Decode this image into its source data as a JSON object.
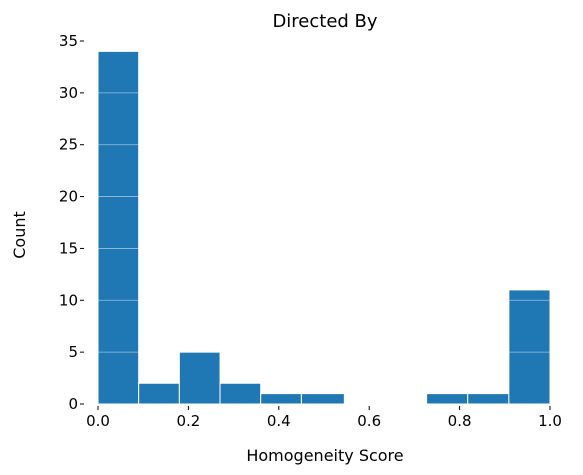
{
  "chart_data": {
    "type": "bar",
    "title": "Directed By",
    "xlabel": "Homogeneity Score",
    "ylabel": "Count",
    "bin_edges": [
      0.0,
      0.09,
      0.18,
      0.27,
      0.36,
      0.45,
      0.545,
      0.636,
      0.727,
      0.818,
      0.909,
      1.0
    ],
    "values": [
      34,
      2,
      5,
      2,
      1,
      1,
      0,
      0,
      1,
      1,
      11
    ],
    "xlim": [
      0.0,
      1.0
    ],
    "ylim": [
      0,
      35
    ],
    "xticks": [
      "0.0",
      "0.2",
      "0.4",
      "0.6",
      "0.8",
      "1.0"
    ],
    "yticks": [
      "0",
      "5",
      "10",
      "15",
      "20",
      "25",
      "30",
      "35"
    ],
    "grid": "horizontal, drawn over bars",
    "color": "#1f77b4"
  }
}
